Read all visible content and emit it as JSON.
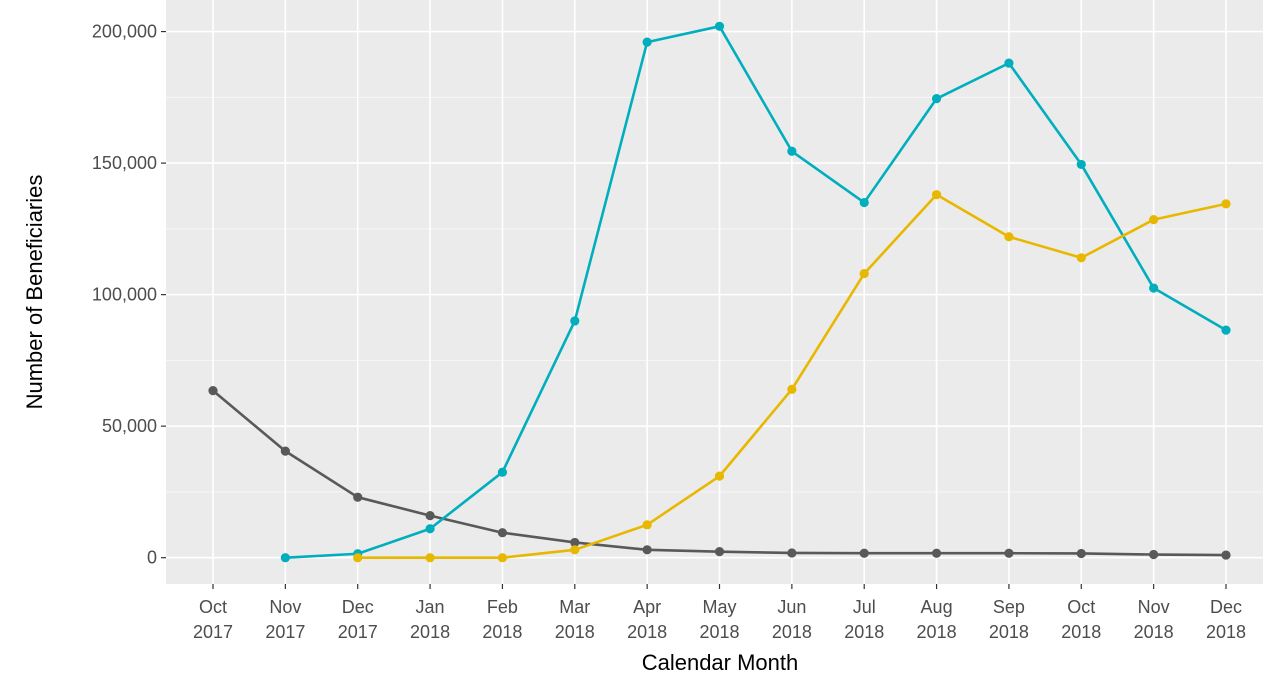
{
  "chart_data": {
    "type": "line",
    "title": "",
    "xlabel": "Calendar Month",
    "ylabel": "Number of Beneficiaries",
    "ylim": [
      -10000,
      212000
    ],
    "grid": true,
    "legend": "none",
    "background": "#ebebeb",
    "yticks": [
      0,
      50000,
      100000,
      150000,
      200000
    ],
    "ytick_labels": [
      "0",
      "50,000",
      "100,000",
      "150,000",
      "200,000"
    ],
    "categories": [
      [
        "Oct",
        "2017"
      ],
      [
        "Nov",
        "2017"
      ],
      [
        "Dec",
        "2017"
      ],
      [
        "Jan",
        "2018"
      ],
      [
        "Feb",
        "2018"
      ],
      [
        "Mar",
        "2018"
      ],
      [
        "Apr",
        "2018"
      ],
      [
        "May",
        "2018"
      ],
      [
        "Jun",
        "2018"
      ],
      [
        "Jul",
        "2018"
      ],
      [
        "Aug",
        "2018"
      ],
      [
        "Sep",
        "2018"
      ],
      [
        "Oct",
        "2018"
      ],
      [
        "Nov",
        "2018"
      ],
      [
        "Dec",
        "2018"
      ]
    ],
    "series": [
      {
        "color": "#595959",
        "values": [
          63500,
          40500,
          23000,
          16000,
          9500,
          5800,
          3000,
          2300,
          1800,
          1700,
          1700,
          1700,
          1600,
          1200,
          1000
        ]
      },
      {
        "color": "#00aebd",
        "values": [
          null,
          0,
          1500,
          11000,
          32500,
          90000,
          196000,
          202000,
          154500,
          135000,
          174500,
          188000,
          149500,
          102500,
          86500
        ]
      },
      {
        "color": "#e8b700",
        "values": [
          null,
          null,
          0,
          0,
          0,
          3000,
          12500,
          31000,
          64000,
          108000,
          138000,
          122000,
          114000,
          128500,
          134500
        ]
      }
    ]
  }
}
